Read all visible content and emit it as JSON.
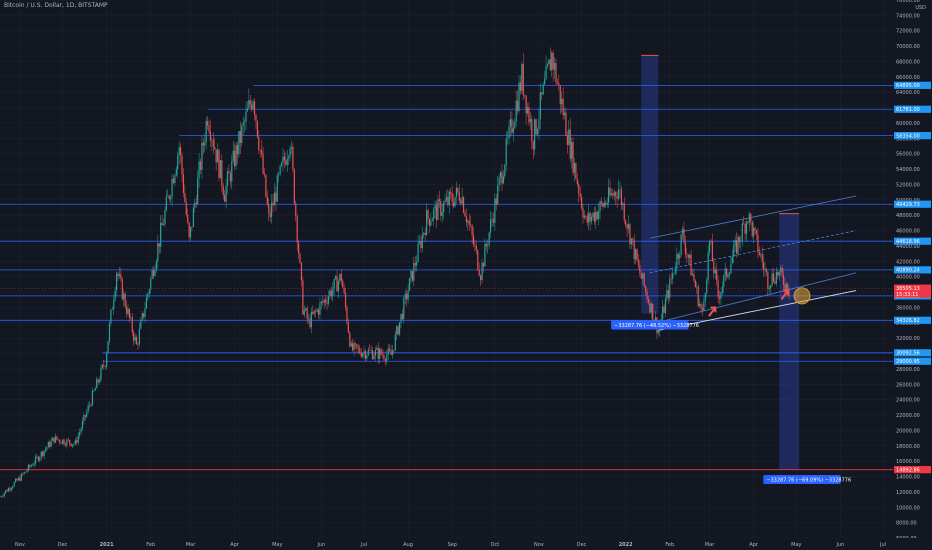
{
  "header": {
    "symbol_title": "Bitcoin / U.S. Dollar, 1D, BITSTAMP",
    "currency": "USD"
  },
  "colors": {
    "background": "#131722",
    "axis_text": "#b2b5be",
    "bull_candle": "#26a69a",
    "bear_candle": "#ef5350",
    "level_line": "#2962ff",
    "level_label_bg": "#2196f3",
    "channel_line": "#4a7fd6",
    "support_line": "#e0e3eb",
    "price_label_bg": "#f23645",
    "highlight_zone": "#2a3a8c",
    "callout_bg": "#2962ff",
    "marker_circle": "#e8a93a"
  },
  "chart_data": {
    "type": "candlestick",
    "x_range": [
      "2020-10-18",
      "2022-07-08"
    ],
    "y_range": [
      6000,
      76000
    ],
    "y_ticks": [
      6000,
      8000,
      10000,
      12000,
      14000,
      16000,
      18000,
      20000,
      22000,
      24000,
      26000,
      28000,
      30000,
      32000,
      34000,
      36000,
      38000,
      40000,
      42000,
      44000,
      46000,
      48000,
      50000,
      52000,
      54000,
      56000,
      58000,
      60000,
      62000,
      64000,
      66000,
      68000,
      70000,
      72000,
      74000,
      76000
    ],
    "y_tick_labels": [
      "6000.00",
      "8000.00",
      "10000.00",
      "12000.00",
      "14000.00",
      "16000.00",
      "18000.00",
      "20000.00",
      "22000.00",
      "24000.00",
      "26000.00",
      "28000.00",
      "30000.00",
      "32000.00",
      "34000.00",
      "36000.00",
      "38000.00",
      "40000.00",
      "42000.00",
      "44000.00",
      "46000.00",
      "48000.00",
      "50000.00",
      "52000.00",
      "54000.00",
      "56000.00",
      "58000.00",
      "60000.00",
      "62000.00",
      "64000.00",
      "66000.00",
      "68000.00",
      "70000.00",
      "72000.00",
      "74000.00",
      "76000.00"
    ],
    "x_ticks": [
      {
        "date": "2020-11-01",
        "label": "Nov",
        "bold": false
      },
      {
        "date": "2020-12-01",
        "label": "Dec",
        "bold": false
      },
      {
        "date": "2021-01-01",
        "label": "2021",
        "bold": true
      },
      {
        "date": "2021-02-01",
        "label": "Feb",
        "bold": false
      },
      {
        "date": "2021-03-01",
        "label": "Mar",
        "bold": false
      },
      {
        "date": "2021-04-01",
        "label": "Apr",
        "bold": false
      },
      {
        "date": "2021-05-01",
        "label": "May",
        "bold": false
      },
      {
        "date": "2021-06-01",
        "label": "Jun",
        "bold": false
      },
      {
        "date": "2021-07-01",
        "label": "Jul",
        "bold": false
      },
      {
        "date": "2021-08-01",
        "label": "Aug",
        "bold": false
      },
      {
        "date": "2021-09-01",
        "label": "Sep",
        "bold": false
      },
      {
        "date": "2021-10-01",
        "label": "Oct",
        "bold": false
      },
      {
        "date": "2021-11-01",
        "label": "Nov",
        "bold": false
      },
      {
        "date": "2021-12-01",
        "label": "Dec",
        "bold": false
      },
      {
        "date": "2022-01-01",
        "label": "2022",
        "bold": true
      },
      {
        "date": "2022-02-01",
        "label": "Feb",
        "bold": false
      },
      {
        "date": "2022-03-01",
        "label": "Mar",
        "bold": false
      },
      {
        "date": "2022-04-01",
        "label": "Apr",
        "bold": false
      },
      {
        "date": "2022-05-01",
        "label": "May",
        "bold": false
      },
      {
        "date": "2022-06-01",
        "label": "Jun",
        "bold": false
      },
      {
        "date": "2022-07-01",
        "label": "Jul",
        "bold": false
      }
    ],
    "price_path": [
      [
        "2020-10-18",
        11400
      ],
      [
        "2020-11-01",
        13800
      ],
      [
        "2020-11-25",
        18900
      ],
      [
        "2020-12-10",
        18300
      ],
      [
        "2020-12-31",
        29000
      ],
      [
        "2021-01-08",
        40800
      ],
      [
        "2021-01-22",
        31000
      ],
      [
        "2021-02-09",
        46500
      ],
      [
        "2021-02-21",
        57000
      ],
      [
        "2021-02-28",
        44500
      ],
      [
        "2021-03-13",
        61200
      ],
      [
        "2021-03-25",
        51000
      ],
      [
        "2021-04-14",
        63800
      ],
      [
        "2021-04-25",
        47500
      ],
      [
        "2021-05-10",
        58000
      ],
      [
        "2021-05-19",
        36000
      ],
      [
        "2021-05-23",
        34000
      ],
      [
        "2021-06-15",
        40000
      ],
      [
        "2021-06-22",
        30500
      ],
      [
        "2021-07-20",
        29800
      ],
      [
        "2021-08-14",
        47500
      ],
      [
        "2021-09-07",
        51000
      ],
      [
        "2021-09-21",
        40500
      ],
      [
        "2021-10-20",
        66000
      ],
      [
        "2021-10-28",
        58000
      ],
      [
        "2021-11-10",
        68800
      ],
      [
        "2021-12-04",
        47000
      ],
      [
        "2021-12-27",
        51500
      ],
      [
        "2022-01-10",
        41000
      ],
      [
        "2022-01-24",
        33000
      ],
      [
        "2022-02-10",
        45500
      ],
      [
        "2022-02-24",
        35000
      ],
      [
        "2022-03-01",
        44500
      ],
      [
        "2022-03-07",
        37500
      ],
      [
        "2022-03-28",
        48000
      ],
      [
        "2022-04-11",
        39500
      ],
      [
        "2022-04-18",
        40500
      ],
      [
        "2022-04-26",
        38400
      ]
    ],
    "horizontal_levels": [
      {
        "price": 64895,
        "label": "64895.00",
        "extend_from": "2021-04-14"
      },
      {
        "price": 61781,
        "label": "61781.00",
        "extend_from": "2021-03-13"
      },
      {
        "price": 58354,
        "label": "58354.00",
        "extend_from": "2021-02-21"
      },
      {
        "price": 49429,
        "label": "49429.73",
        "extend_from": "2020-10-18"
      },
      {
        "price": 44618,
        "label": "44618.96",
        "extend_from": "2020-10-18"
      },
      {
        "price": 40890,
        "label": "40890.24",
        "extend_from": "2020-10-18"
      },
      {
        "price": 37500,
        "label": "37500.00",
        "extend_from": "2020-10-18"
      },
      {
        "price": 34326,
        "label": "34326.82",
        "extend_from": "2020-10-18"
      },
      {
        "price": 30092,
        "label": "30092.56",
        "extend_from": "2020-12-29"
      },
      {
        "price": 29000,
        "label": "29000.95",
        "extend_from": "2020-12-29"
      }
    ],
    "red_level": {
      "price": 14892.86,
      "label": "14892.86"
    },
    "current_price": {
      "price": 38505.13,
      "label": "38505.13",
      "countdown": "15:33:11"
    },
    "highlight_zones": [
      {
        "x_start": "2022-01-12",
        "x_end": "2022-01-24",
        "y_top": 68800,
        "y_bottom": 35200
      },
      {
        "x_start": "2022-04-19",
        "x_end": "2022-05-03",
        "y_top": 48200,
        "y_bottom": 14892
      }
    ],
    "callouts": [
      {
        "text": "−33287.76 (−48.52%) −3328776",
        "date": "2022-01-18",
        "price": 34300
      },
      {
        "text": "−33287.76 (−69.09%) −3328776",
        "date": "2022-05-05",
        "price": 14200
      }
    ],
    "channel": {
      "upper": [
        [
          "2022-01-18",
          45000
        ],
        [
          "2022-06-12",
          50500
        ]
      ],
      "middle": [
        [
          "2022-01-18",
          40500
        ],
        [
          "2022-06-12",
          46000
        ]
      ],
      "lower": [
        [
          "2022-01-18",
          33800
        ],
        [
          "2022-06-12",
          40500
        ]
      ]
    },
    "support_line": [
      [
        "2022-01-24",
        33000
      ],
      [
        "2022-06-12",
        38200
      ]
    ],
    "arrows": [
      {
        "date": "2022-03-03",
        "price": 35600
      },
      {
        "date": "2022-04-23",
        "price": 37800
      }
    ],
    "marker_circle": {
      "date": "2022-05-05",
      "price": 37500
    }
  }
}
